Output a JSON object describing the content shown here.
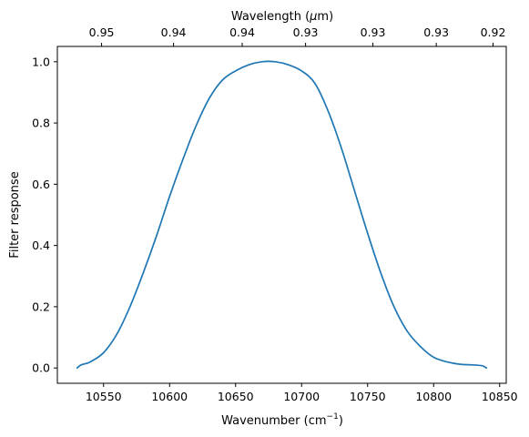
{
  "chart_data": {
    "type": "line",
    "xlabel": "Wavenumber (cm",
    "xlabel_sup": "−1",
    "xlabel_close": ")",
    "ylabel": "Filter response",
    "top_xlabel_prefix": "Wavelength (",
    "top_xlabel_mu": "μ",
    "top_xlabel_suffix": "m)",
    "xlim": [
      10515,
      10855
    ],
    "ylim": [
      -0.05,
      1.05
    ],
    "x_ticks": [
      10550,
      10600,
      10650,
      10700,
      10750,
      10800,
      10850
    ],
    "y_ticks": [
      0.0,
      0.2,
      0.4,
      0.6,
      0.8,
      1.0
    ],
    "x_tick_labels": [
      "10550",
      "10600",
      "10650",
      "10700",
      "10750",
      "10800",
      "10850"
    ],
    "y_tick_labels": [
      "0.0",
      "0.2",
      "0.4",
      "0.6",
      "0.8",
      "1.0"
    ],
    "top_ticks": [
      {
        "x": 10548.5,
        "label": "0.95"
      },
      {
        "x": 10603,
        "label": "0.94"
      },
      {
        "x": 10655,
        "label": "0.94"
      },
      {
        "x": 10703,
        "label": "0.93"
      },
      {
        "x": 10754,
        "label": "0.93"
      },
      {
        "x": 10802,
        "label": "0.93"
      },
      {
        "x": 10845,
        "label": "0.92"
      }
    ],
    "grid": false,
    "series": [
      {
        "color": "#1f77b4",
        "x": [
          10530,
          10533,
          10540,
          10550,
          10560,
          10570,
          10580,
          10590,
          10600,
          10610,
          10620,
          10630,
          10640,
          10650,
          10660,
          10670,
          10680,
          10690,
          10700,
          10710,
          10720,
          10730,
          10740,
          10750,
          10760,
          10770,
          10780,
          10790,
          10800,
          10810,
          10820,
          10830,
          10837,
          10840
        ],
        "y": [
          0.0,
          0.01,
          0.02,
          0.05,
          0.11,
          0.2,
          0.31,
          0.43,
          0.56,
          0.68,
          0.79,
          0.88,
          0.94,
          0.97,
          0.99,
          1.0,
          1.0,
          0.99,
          0.97,
          0.93,
          0.84,
          0.72,
          0.58,
          0.44,
          0.31,
          0.2,
          0.12,
          0.07,
          0.035,
          0.02,
          0.012,
          0.01,
          0.007,
          0.0
        ]
      }
    ]
  }
}
